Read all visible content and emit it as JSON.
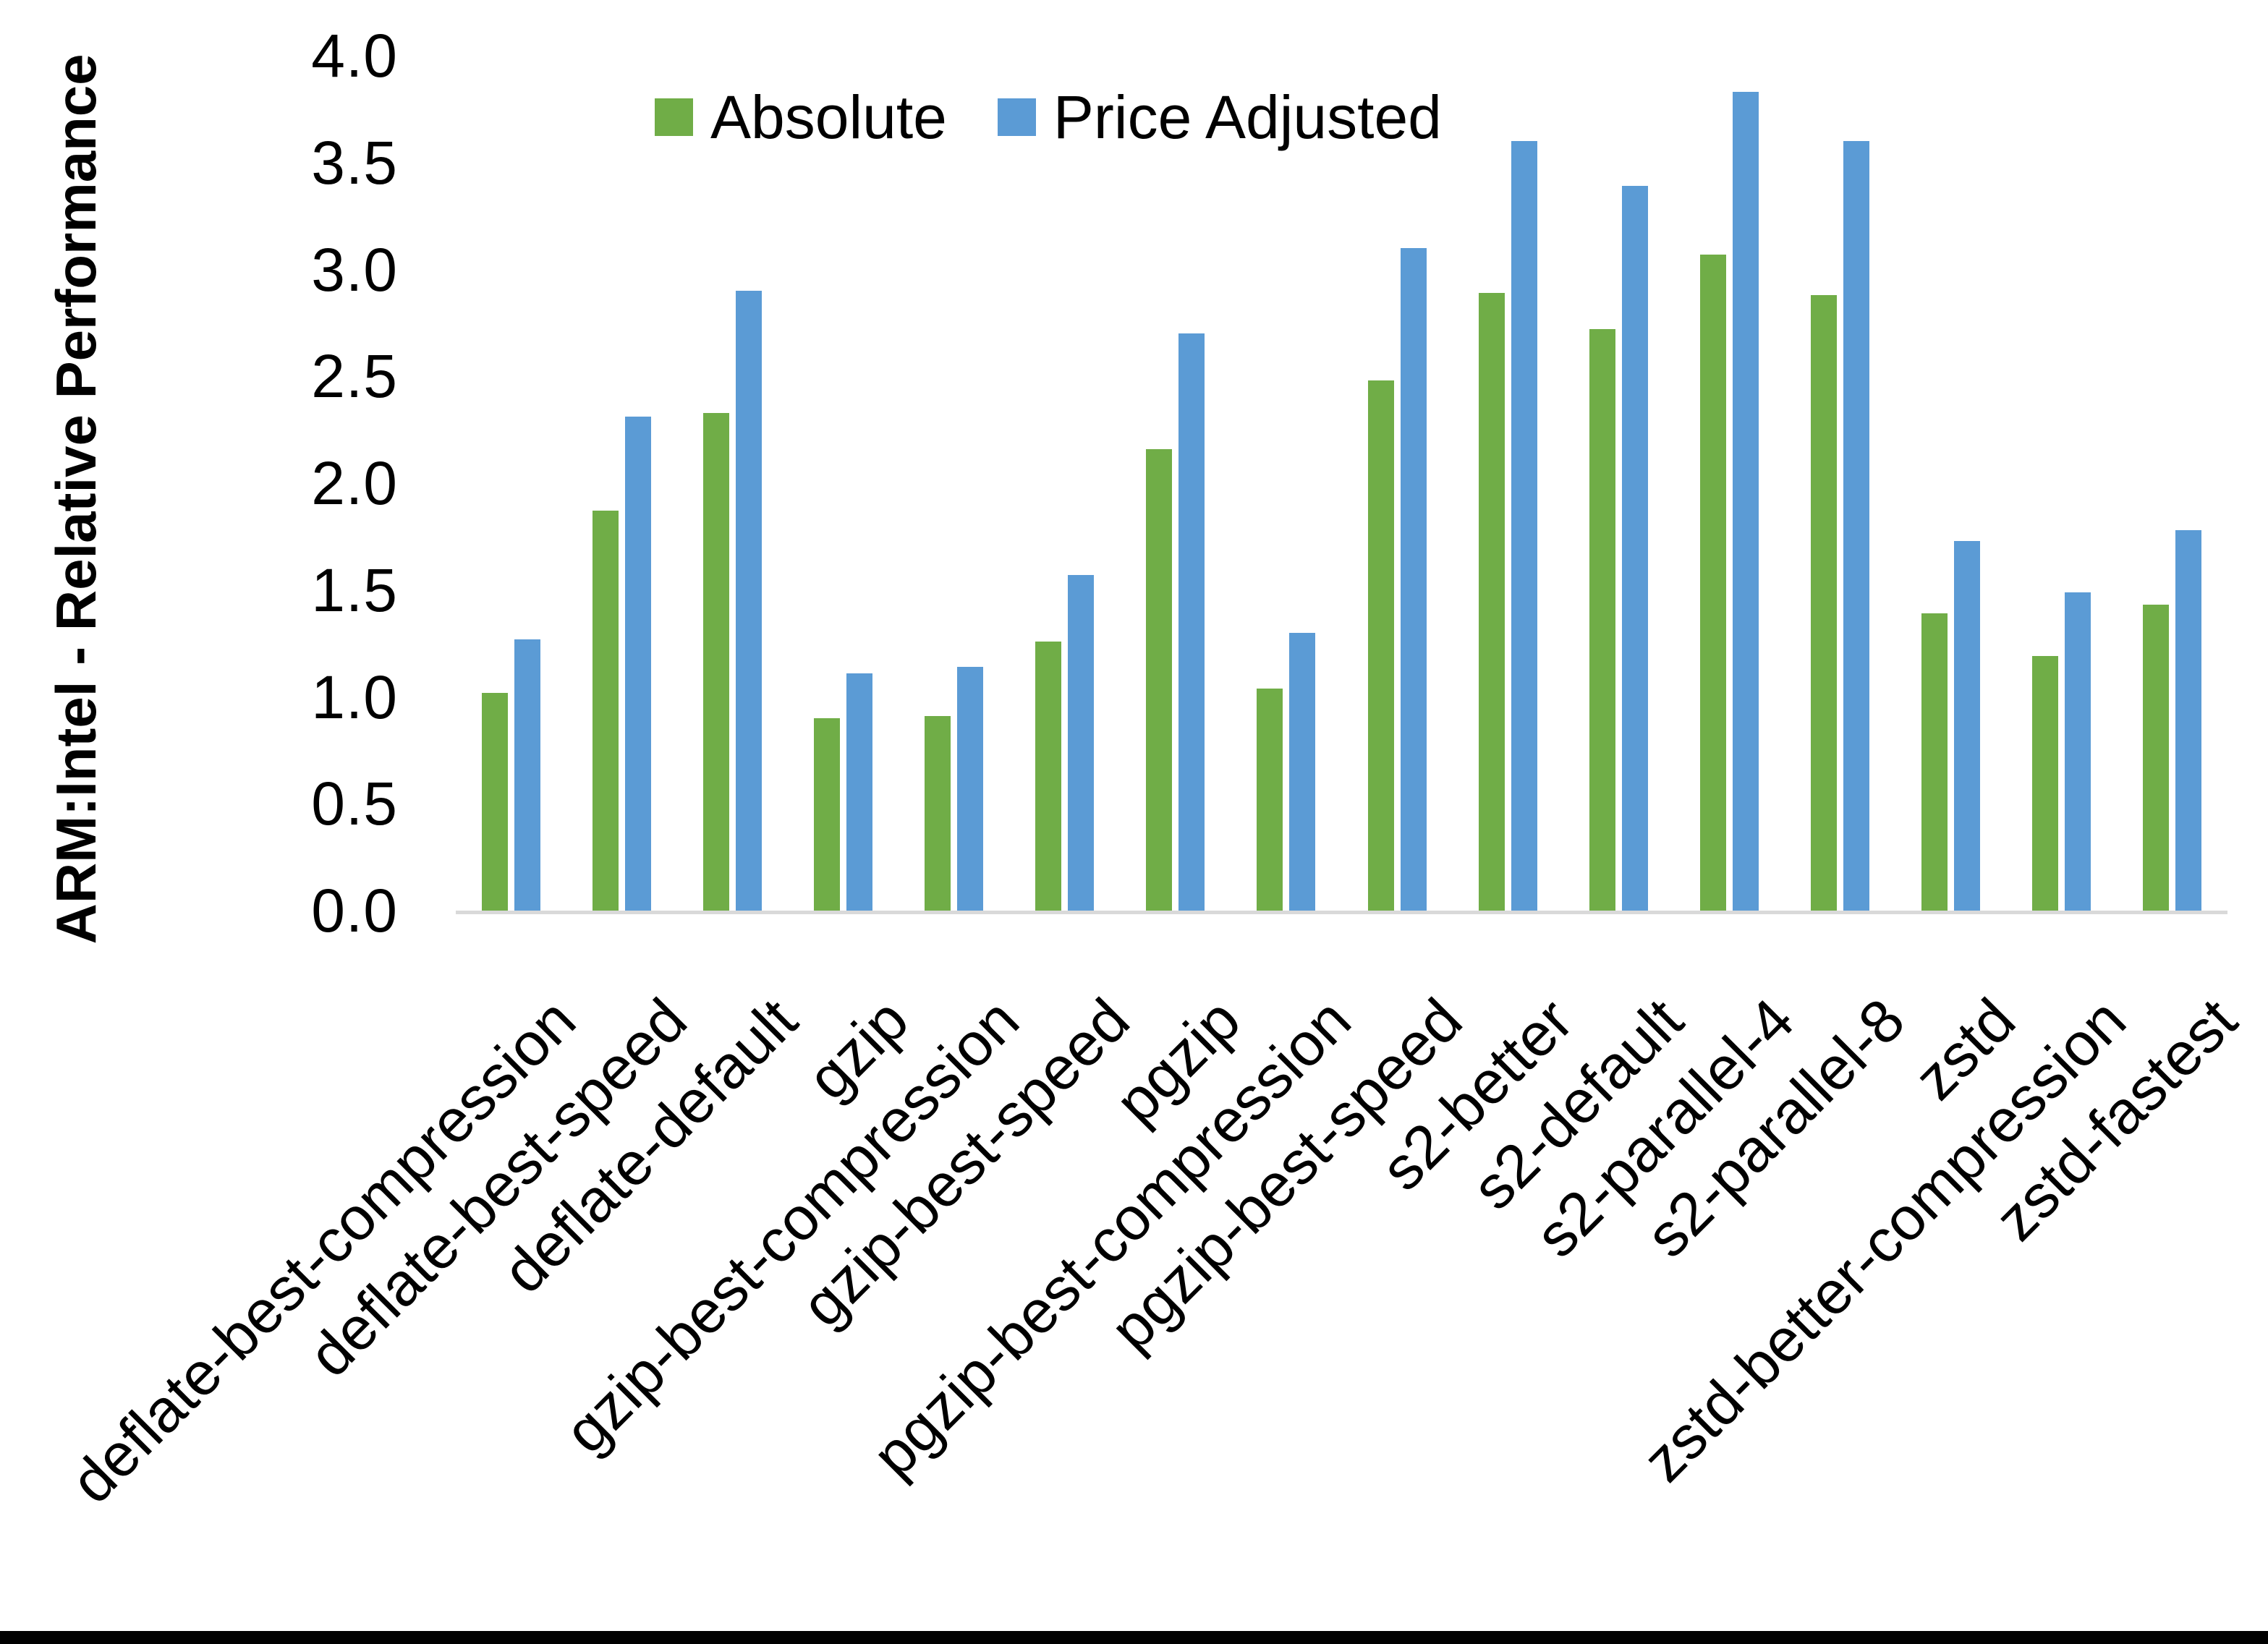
{
  "chart_data": {
    "type": "bar",
    "title": "",
    "xlabel": "",
    "ylabel": "ARM:Intel - Relative Performance",
    "ylim": [
      0.0,
      4.0
    ],
    "ytick_interval": 0.5,
    "ytick_labels": [
      "0.0",
      "0.5",
      "1.0",
      "1.5",
      "2.0",
      "2.5",
      "3.0",
      "3.5",
      "4.0"
    ],
    "grid": false,
    "legend_position": "top-center",
    "axis_line_color": "#D9D9D9",
    "categories": [
      "deflate-best-compression",
      "deflate-best-speed",
      "deflate-default",
      "gzip",
      "gzip-best-compression",
      "gzip-best-speed",
      "pgzip",
      "pgzip-best-compression",
      "pgzip-best-speed",
      "s2-better",
      "s2-default",
      "s2-parallel-4",
      "s2-parallel-8",
      "zstd",
      "zstd-better-compression",
      "zstd-fastest"
    ],
    "series": [
      {
        "name": "Absolute",
        "color": "#70AD47",
        "values": [
          1.02,
          1.87,
          2.33,
          0.9,
          0.91,
          1.26,
          2.16,
          1.04,
          2.48,
          2.89,
          2.72,
          3.07,
          2.88,
          1.39,
          1.19,
          1.43
        ]
      },
      {
        "name": "Price Adjusted",
        "color": "#5B9BD5",
        "values": [
          1.27,
          2.31,
          2.9,
          1.11,
          1.14,
          1.57,
          2.7,
          1.3,
          3.1,
          3.6,
          3.39,
          3.83,
          3.6,
          1.73,
          1.49,
          1.78
        ]
      }
    ]
  },
  "figure": {
    "background": "#FFFFFF",
    "bottom_bar_color": "#000000",
    "text_color": "#000000"
  }
}
